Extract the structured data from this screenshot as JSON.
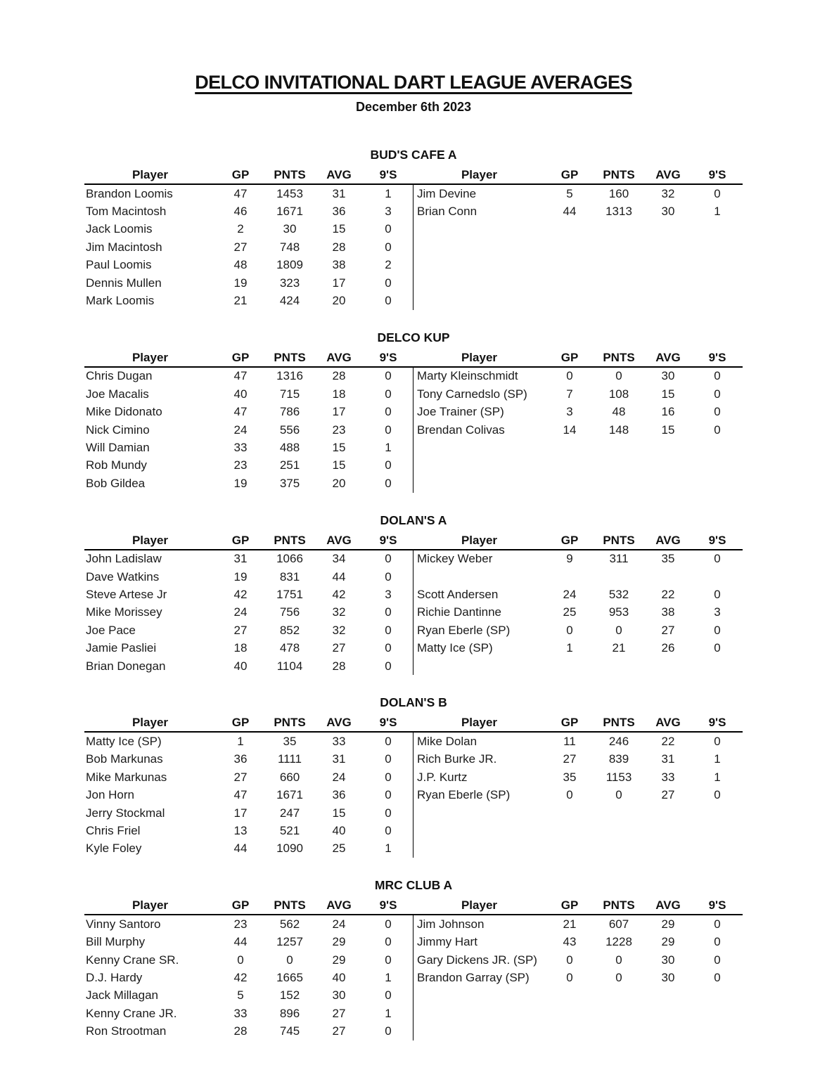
{
  "document": {
    "title": "DELCO INVITATIONAL DART LEAGUE AVERAGES",
    "date": "December 6th 2023"
  },
  "table_columns": [
    "Player",
    "GP",
    "PNTS",
    "AVG",
    "9'S"
  ],
  "sections": [
    {
      "name": "BUD'S CAFE A",
      "left_rows": [
        [
          "Brandon Loomis",
          "47",
          "1453",
          "31",
          "1"
        ],
        [
          "Tom Macintosh",
          "46",
          "1671",
          "36",
          "3"
        ],
        [
          "Jack Loomis",
          "2",
          "30",
          "15",
          "0"
        ],
        [
          "Jim Macintosh",
          "27",
          "748",
          "28",
          "0"
        ],
        [
          "Paul Loomis",
          "48",
          "1809",
          "38",
          "2"
        ],
        [
          "Dennis Mullen",
          "19",
          "323",
          "17",
          "0"
        ],
        [
          "Mark Loomis",
          "21",
          "424",
          "20",
          "0"
        ]
      ],
      "right_rows": [
        [
          "Jim Devine",
          "5",
          "160",
          "32",
          "0"
        ],
        [
          "Brian Conn",
          "44",
          "1313",
          "30",
          "1"
        ]
      ]
    },
    {
      "name": "DELCO KUP",
      "left_rows": [
        [
          "Chris Dugan",
          "47",
          "1316",
          "28",
          "0"
        ],
        [
          "Joe Macalis",
          "40",
          "715",
          "18",
          "0"
        ],
        [
          "Mike Didonato",
          "47",
          "786",
          "17",
          "0"
        ],
        [
          "Nick Cimino",
          "24",
          "556",
          "23",
          "0"
        ],
        [
          "Will Damian",
          "33",
          "488",
          "15",
          "1"
        ],
        [
          "Rob Mundy",
          "23",
          "251",
          "15",
          "0"
        ],
        [
          "Bob Gildea",
          "19",
          "375",
          "20",
          "0"
        ]
      ],
      "right_rows": [
        [
          "Marty Kleinschmidt",
          "0",
          "0",
          "30",
          "0"
        ],
        [
          "Tony Carnedslo (SP)",
          "7",
          "108",
          "15",
          "0"
        ],
        [
          "Joe Trainer (SP)",
          "3",
          "48",
          "16",
          "0"
        ],
        [
          "Brendan Colivas",
          "14",
          "148",
          "15",
          "0"
        ]
      ]
    },
    {
      "name": "DOLAN'S A",
      "left_rows": [
        [
          "John Ladislaw",
          "31",
          "1066",
          "34",
          "0"
        ],
        [
          "Dave Watkins",
          "19",
          "831",
          "44",
          "0"
        ],
        [
          "Steve Artese Jr",
          "42",
          "1751",
          "42",
          "3"
        ],
        [
          "Mike Morissey",
          "24",
          "756",
          "32",
          "0"
        ],
        [
          "Joe Pace",
          "27",
          "852",
          "32",
          "0"
        ],
        [
          "Jamie Pasliei",
          "18",
          "478",
          "27",
          "0"
        ],
        [
          "Brian Donegan",
          "40",
          "1104",
          "28",
          "0"
        ]
      ],
      "right_rows": [
        [
          "Mickey Weber",
          "9",
          "311",
          "35",
          "0"
        ],
        [
          "",
          "",
          "",
          "",
          ""
        ],
        [
          "Scott Andersen",
          "24",
          "532",
          "22",
          "0"
        ],
        [
          "Richie Dantinne",
          "25",
          "953",
          "38",
          "3"
        ],
        [
          "Ryan Eberle (SP)",
          "0",
          "0",
          "27",
          "0"
        ],
        [
          "Matty Ice (SP)",
          "1",
          "21",
          "26",
          "0"
        ]
      ]
    },
    {
      "name": "DOLAN'S B",
      "left_rows": [
        [
          "Matty Ice (SP)",
          "1",
          "35",
          "33",
          "0"
        ],
        [
          "Bob Markunas",
          "36",
          "1111",
          "31",
          "0"
        ],
        [
          "Mike Markunas",
          "27",
          "660",
          "24",
          "0"
        ],
        [
          "Jon Horn",
          "47",
          "1671",
          "36",
          "0"
        ],
        [
          "Jerry Stockmal",
          "17",
          "247",
          "15",
          "0"
        ],
        [
          "Chris Friel",
          "13",
          "521",
          "40",
          "0"
        ],
        [
          "Kyle Foley",
          "44",
          "1090",
          "25",
          "1"
        ]
      ],
      "right_rows": [
        [
          "Mike Dolan",
          "11",
          "246",
          "22",
          "0"
        ],
        [
          "Rich Burke JR.",
          "27",
          "839",
          "31",
          "1"
        ],
        [
          "J.P. Kurtz",
          "35",
          "1153",
          "33",
          "1"
        ],
        [
          "Ryan Eberle (SP)",
          "0",
          "0",
          "27",
          "0"
        ]
      ]
    },
    {
      "name": "MRC CLUB A",
      "left_rows": [
        [
          "Vinny Santoro",
          "23",
          "562",
          "24",
          "0"
        ],
        [
          "Bill Murphy",
          "44",
          "1257",
          "29",
          "0"
        ],
        [
          "Kenny Crane SR.",
          "0",
          "0",
          "29",
          "0"
        ],
        [
          "D.J. Hardy",
          "42",
          "1665",
          "40",
          "1"
        ],
        [
          "Jack Millagan",
          "5",
          "152",
          "30",
          "0"
        ],
        [
          "Kenny Crane JR.",
          "33",
          "896",
          "27",
          "1"
        ],
        [
          "Ron Strootman",
          "28",
          "745",
          "27",
          "0"
        ]
      ],
      "right_rows": [
        [
          "Jim Johnson",
          "21",
          "607",
          "29",
          "0"
        ],
        [
          "Jimmy Hart",
          "43",
          "1228",
          "29",
          "0"
        ],
        [
          "Gary Dickens JR. (SP)",
          "0",
          "0",
          "30",
          "0"
        ],
        [
          "Brandon Garray (SP)",
          "0",
          "0",
          "30",
          "0"
        ]
      ]
    }
  ]
}
